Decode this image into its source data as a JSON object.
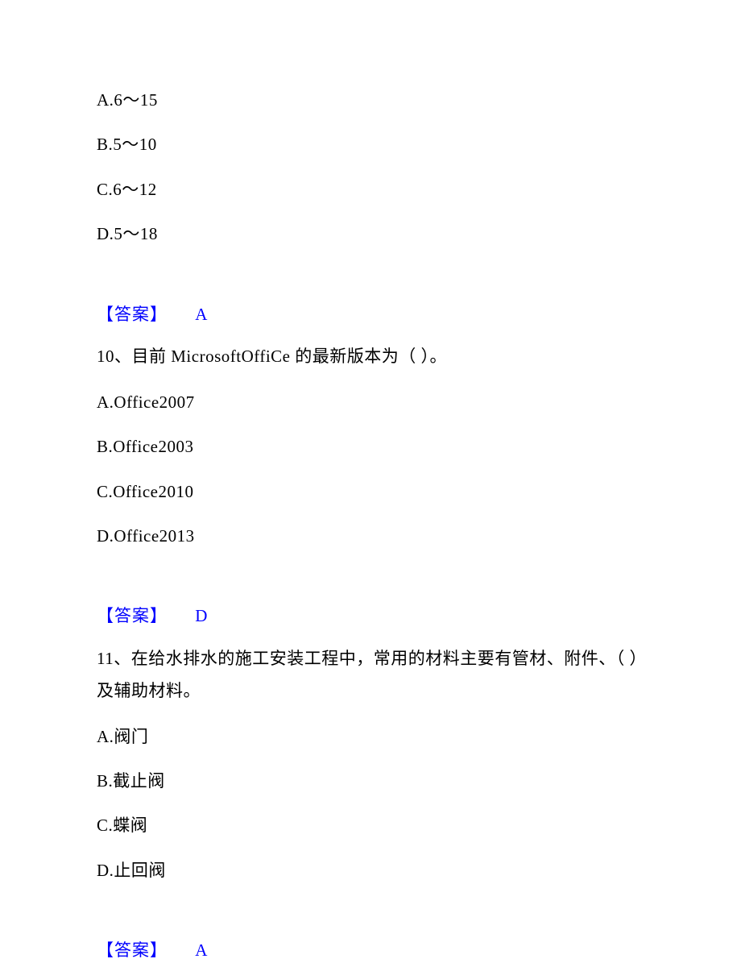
{
  "q9": {
    "options": {
      "a": "A.6～15",
      "b": "B.5～10",
      "c": "C.6～12",
      "d": "D.5～18"
    },
    "answer_label": "【答案】",
    "answer_letter": "A"
  },
  "q10": {
    "question": "10、目前 MicrosoftOffiCe 的最新版本为（ ）。",
    "options": {
      "a": "A.Office2007",
      "b": "B.Office2003",
      "c": "C.Office2010",
      "d": "D.Office2013"
    },
    "answer_label": "【答案】",
    "answer_letter": "D"
  },
  "q11": {
    "question": "11、在给水排水的施工安装工程中，常用的材料主要有管材、附件、（ ）及辅助材料。",
    "options": {
      "a": "A.阀门",
      "b": "B.截止阀",
      "c": "C.蝶阀",
      "d": "D.止回阀"
    },
    "answer_label": "【答案】",
    "answer_letter": "A"
  }
}
